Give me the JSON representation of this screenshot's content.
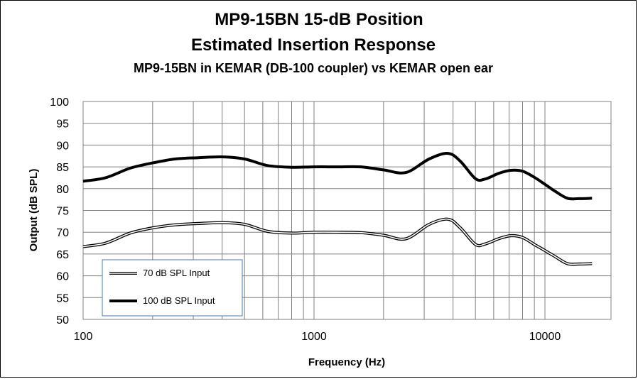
{
  "chart_data": {
    "type": "line",
    "title_line1": "MP9-15BN  15-dB Position",
    "title_line2": "Estimated Insertion Response",
    "subtitle": "MP9-15BN in KEMAR (DB-100 coupler) vs KEMAR open ear",
    "xlabel": "Frequency (Hz)",
    "ylabel": "Output (dB SPL)",
    "x_scale": "log",
    "xlim": [
      100,
      20000
    ],
    "ylim": [
      50,
      100
    ],
    "x_ticks": [
      100,
      1000,
      10000
    ],
    "x_tick_labels": [
      "100",
      "1000",
      "10000"
    ],
    "y_ticks": [
      50,
      55,
      60,
      65,
      70,
      75,
      80,
      85,
      90,
      95,
      100
    ],
    "grid": true,
    "legend_position": "bottom-left",
    "series": [
      {
        "name": "70 dB SPL Input",
        "style": "double-line",
        "color": "#000000",
        "x": [
          100,
          125,
          160,
          200,
          250,
          315,
          400,
          500,
          630,
          800,
          1000,
          1250,
          1600,
          2000,
          2500,
          3150,
          3800,
          4300,
          5000,
          5500,
          6300,
          7100,
          8000,
          9000,
          10000,
          11000,
          12500,
          14000,
          16000
        ],
        "y": [
          66.7,
          67.5,
          69.8,
          71.0,
          71.7,
          72.0,
          72.2,
          71.8,
          70.2,
          69.8,
          70.0,
          70.0,
          69.9,
          69.3,
          68.5,
          71.8,
          73.0,
          71.0,
          67.2,
          67.3,
          68.5,
          69.2,
          68.8,
          67.2,
          65.8,
          64.5,
          62.8,
          62.7,
          62.8
        ]
      },
      {
        "name": "100 dB SPL Input",
        "style": "thick-line",
        "color": "#000000",
        "x": [
          100,
          125,
          160,
          200,
          250,
          315,
          400,
          500,
          630,
          800,
          1000,
          1250,
          1600,
          2000,
          2500,
          3150,
          3800,
          4300,
          5000,
          5500,
          6300,
          7100,
          8000,
          9000,
          10000,
          11000,
          12500,
          14000,
          16000
        ],
        "y": [
          81.7,
          82.5,
          84.7,
          85.9,
          86.8,
          87.1,
          87.3,
          86.8,
          85.3,
          84.9,
          85.0,
          85.0,
          85.0,
          84.3,
          83.7,
          86.8,
          88.1,
          86.3,
          82.3,
          82.2,
          83.5,
          84.2,
          84.0,
          82.6,
          81.0,
          79.5,
          77.8,
          77.7,
          77.8
        ]
      }
    ]
  }
}
